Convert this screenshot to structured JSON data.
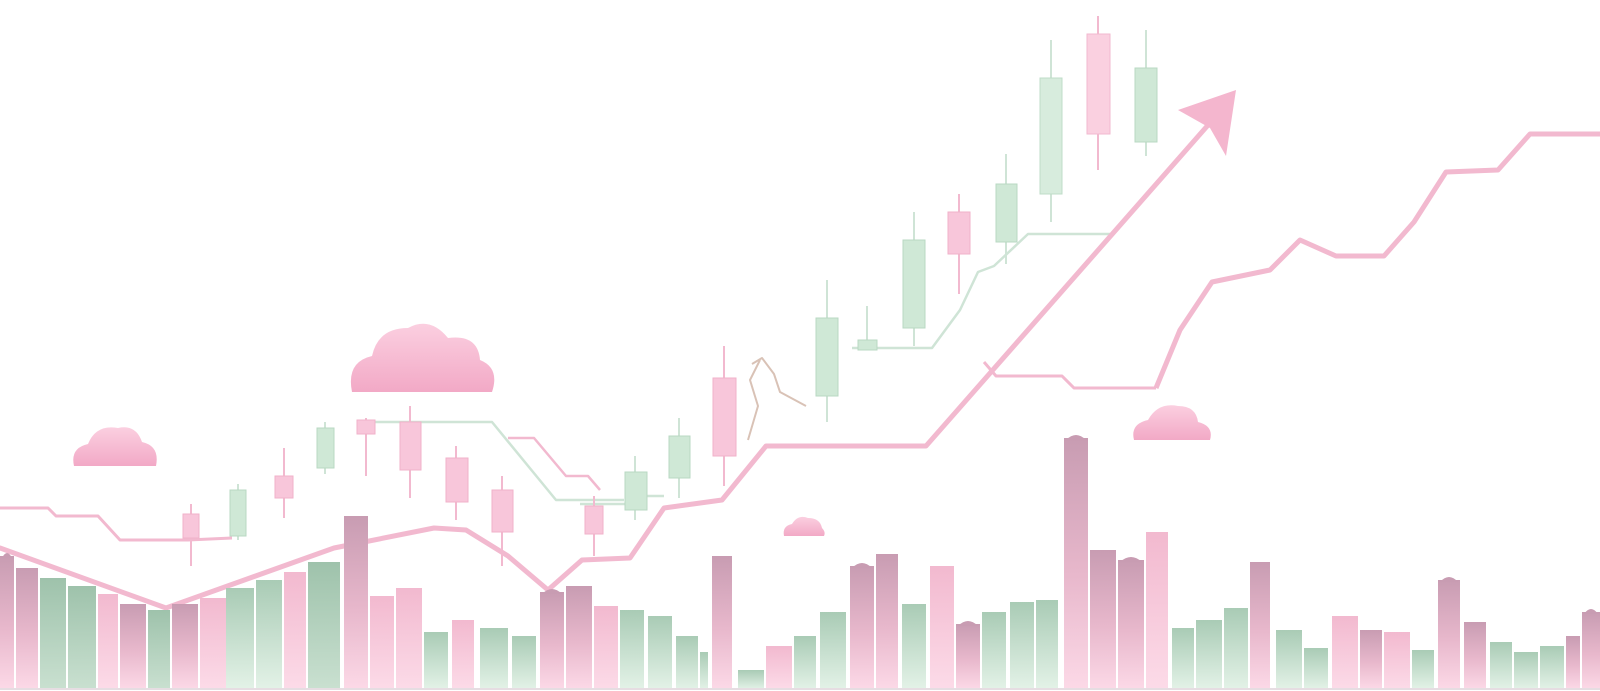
{
  "illustration": {
    "type": "decorative-stock-market-growth-illustration",
    "palette": {
      "background": "#ffffff",
      "pink": "#f8c2d8",
      "pink_deep": "#eeb0c8",
      "pink_line": "#f2b9cf",
      "green": "#cfe8d6",
      "green_deep": "#aacdb6",
      "mauve": "#c8a0b4",
      "cloud": "#f8c0d6"
    },
    "icons": [
      "cloud-icon",
      "upward-arrow-icon",
      "candlestick-icon",
      "skyline-icon"
    ]
  }
}
